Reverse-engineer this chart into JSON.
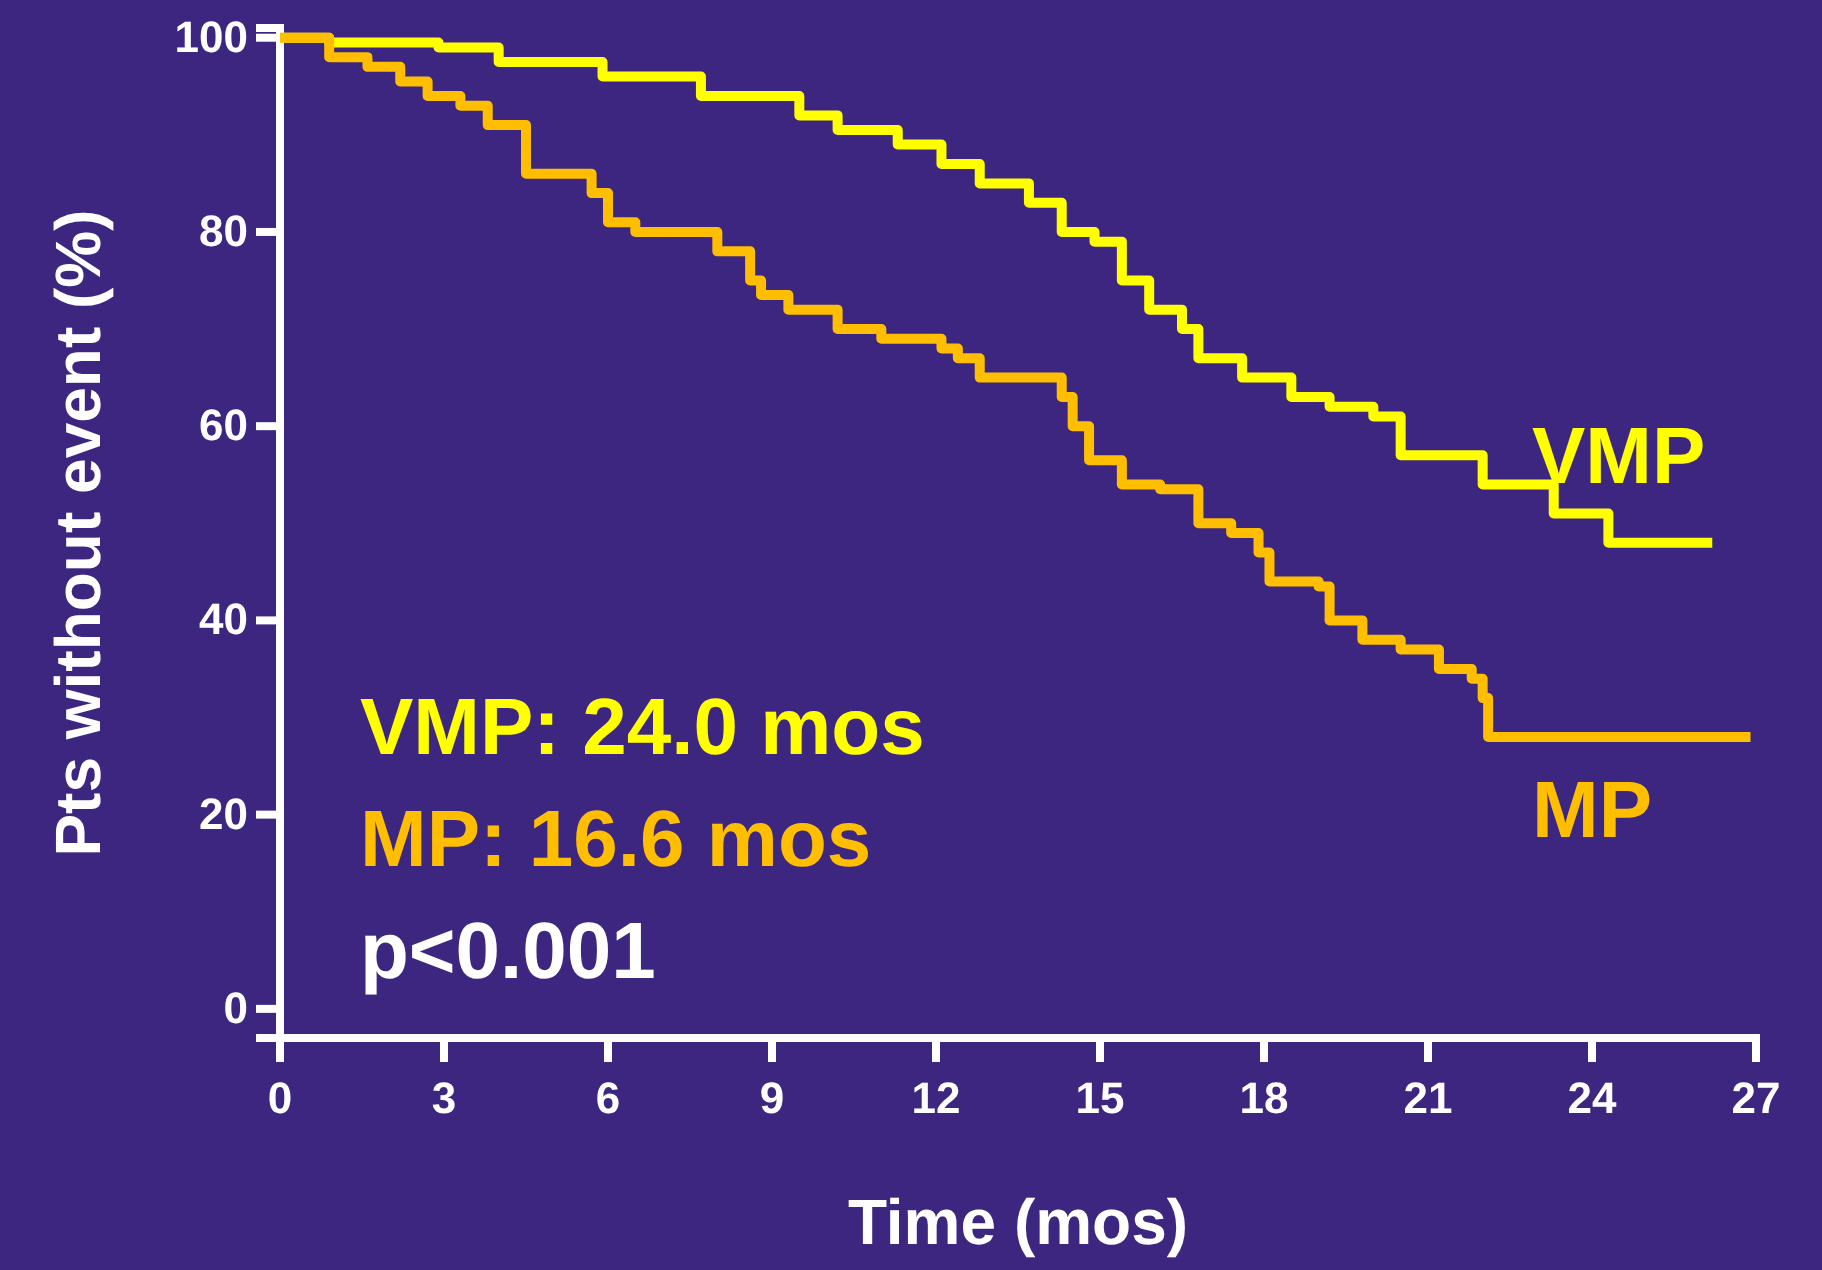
{
  "chart_data": {
    "type": "step",
    "xlabel": "Time (mos)",
    "ylabel": "Pts without event (%)",
    "xlim": [
      0,
      27
    ],
    "xticks": [
      0,
      3,
      6,
      9,
      12,
      15,
      18,
      21,
      24,
      27
    ],
    "ylim": [
      -3,
      101
    ],
    "yticks": [
      0,
      20,
      40,
      60,
      80,
      100
    ],
    "grid": false,
    "legend": false,
    "marker": "none",
    "line_style": "solid",
    "annotations": [
      "VMP: 24.0 mos",
      "MP: 16.6 mos",
      "p<0.001"
    ],
    "series": [
      {
        "name": "VMP",
        "color": "#ffff00",
        "x": [
          0,
          0.9,
          2.9,
          4.0,
          5.9,
          7.7,
          9.5,
          10.2,
          11.3,
          12.1,
          12.8,
          13.7,
          14.3,
          14.9,
          15.4,
          15.9,
          16.5,
          16.8,
          17.6,
          18.5,
          19.2,
          20.0,
          20.5,
          22.0,
          23.3,
          24.3,
          26.2
        ],
        "values": [
          100,
          99.5,
          99,
          97.5,
          96,
          94,
          92,
          90.5,
          89,
          87,
          85,
          83,
          80,
          79,
          75,
          72,
          70,
          67,
          65,
          63,
          62,
          61,
          57,
          54,
          51,
          48,
          48
        ]
      },
      {
        "name": "MP",
        "color": "#ffbf00",
        "x": [
          0,
          0.9,
          1.6,
          2.2,
          2.7,
          3.3,
          3.8,
          4.5,
          5.7,
          6.0,
          6.5,
          8.0,
          8.6,
          8.8,
          9.3,
          10.2,
          11.0,
          12.1,
          12.4,
          12.8,
          14.3,
          14.5,
          14.8,
          15.4,
          16.1,
          16.8,
          17.4,
          17.9,
          18.1,
          19.0,
          19.2,
          19.8,
          20.5,
          21.2,
          21.8,
          22.0,
          22.1,
          26.9
        ],
        "values": [
          100,
          98,
          97,
          95.5,
          94,
          93,
          91,
          86,
          84,
          81,
          80,
          78,
          75,
          73.5,
          72,
          70,
          69,
          68,
          67,
          65,
          63,
          60,
          56.5,
          54,
          53.5,
          50,
          49,
          47,
          44,
          43.5,
          40,
          38,
          37,
          35,
          34,
          32,
          28,
          28
        ]
      }
    ]
  }
}
